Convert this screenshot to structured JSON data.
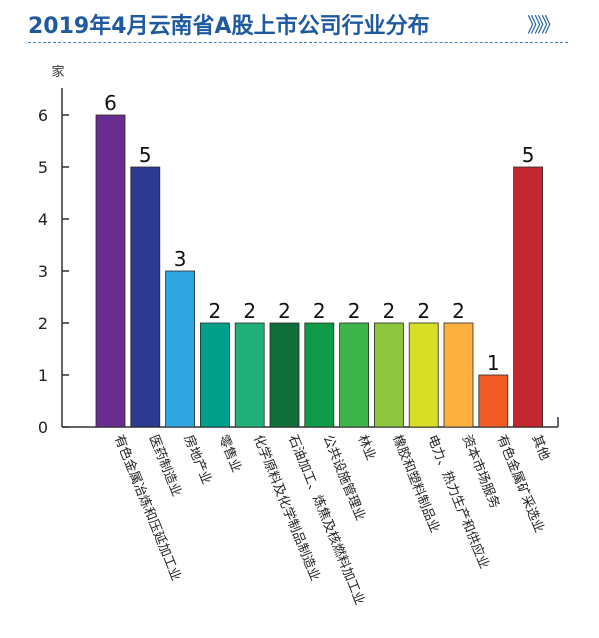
{
  "header": {
    "title": "2019年4月云南省A股上市公司行业分布",
    "chevrons": "》》》"
  },
  "colors": {
    "title": "#1f5aa0",
    "axis": "#333333"
  },
  "chart_data": {
    "type": "bar",
    "title": "2019年4月云南省A股上市公司行业分布",
    "ylabel": "家",
    "xlabel": "",
    "ylim": [
      0,
      6
    ],
    "yticks": [
      "0",
      "1",
      "2",
      "2",
      "3",
      "4",
      "5",
      "6"
    ],
    "ytick_values": [
      0,
      1,
      2,
      2,
      3,
      4,
      5,
      6
    ],
    "grid": false,
    "categories": [
      "有色金属冶炼和压延加工业",
      "医药制造业",
      "房地产业",
      "零售业",
      "化学原料及化学制品制造业",
      "石油加工、炼焦及核燃料加工业",
      "公共设施管理业",
      "林业",
      "橡胶和塑料制品业",
      "电力、热力生产和供应业",
      "资本市场服务",
      "有色金属矿采选业",
      "其他"
    ],
    "values": [
      6,
      5,
      3,
      2,
      2,
      2,
      2,
      2,
      2,
      2,
      2,
      1,
      5
    ],
    "value_labels": [
      "6",
      "5",
      "3",
      "2",
      "2",
      "2",
      "2",
      "2",
      "2",
      "2",
      "2",
      "1",
      "5"
    ],
    "bar_colors": [
      "#6a2d8f",
      "#2e3a8f",
      "#2fa6e0",
      "#00a08a",
      "#22b07a",
      "#0f6e3a",
      "#0f9a48",
      "#3cb44a",
      "#8cc63f",
      "#d6df26",
      "#fbb040",
      "#f15a24",
      "#c1272d"
    ]
  }
}
